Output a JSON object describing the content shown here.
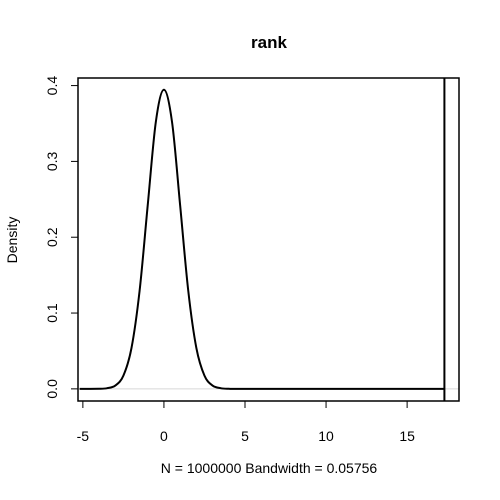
{
  "chart_data": {
    "type": "line",
    "title": "rank",
    "xlabel": "N = 1000000   Bandwidth = 0.05756",
    "ylabel": "Density",
    "xlim": [
      -5.3,
      18.2
    ],
    "ylim": [
      -0.016,
      0.41
    ],
    "x_ticks": [
      -5,
      0,
      5,
      10,
      15
    ],
    "y_ticks": [
      0.0,
      0.1,
      0.2,
      0.3,
      0.4
    ],
    "x_tick_labels": [
      "-5",
      "0",
      "5",
      "10",
      "15"
    ],
    "y_tick_labels": [
      "0.0",
      "0.1",
      "0.2",
      "0.3",
      "0.4"
    ],
    "grid": false,
    "zero_baseline": true,
    "series": [
      {
        "x": [
          -5.2,
          -4.0,
          -3.5,
          -3.0,
          -2.5,
          -2.0,
          -1.5,
          -1.0,
          -0.5,
          0.0,
          0.5,
          1.0,
          1.5,
          2.0,
          2.5,
          3.0,
          3.5,
          4.0,
          5.0,
          10.0,
          17.3
        ],
        "y": [
          0.0,
          0.0001,
          0.0009,
          0.0044,
          0.0175,
          0.054,
          0.1295,
          0.242,
          0.352,
          0.3945,
          0.352,
          0.242,
          0.1295,
          0.054,
          0.0175,
          0.0044,
          0.0009,
          0.0001,
          0.0,
          0.0,
          0.0
        ]
      }
    ],
    "vertical_line": {
      "x": 17.3
    }
  }
}
